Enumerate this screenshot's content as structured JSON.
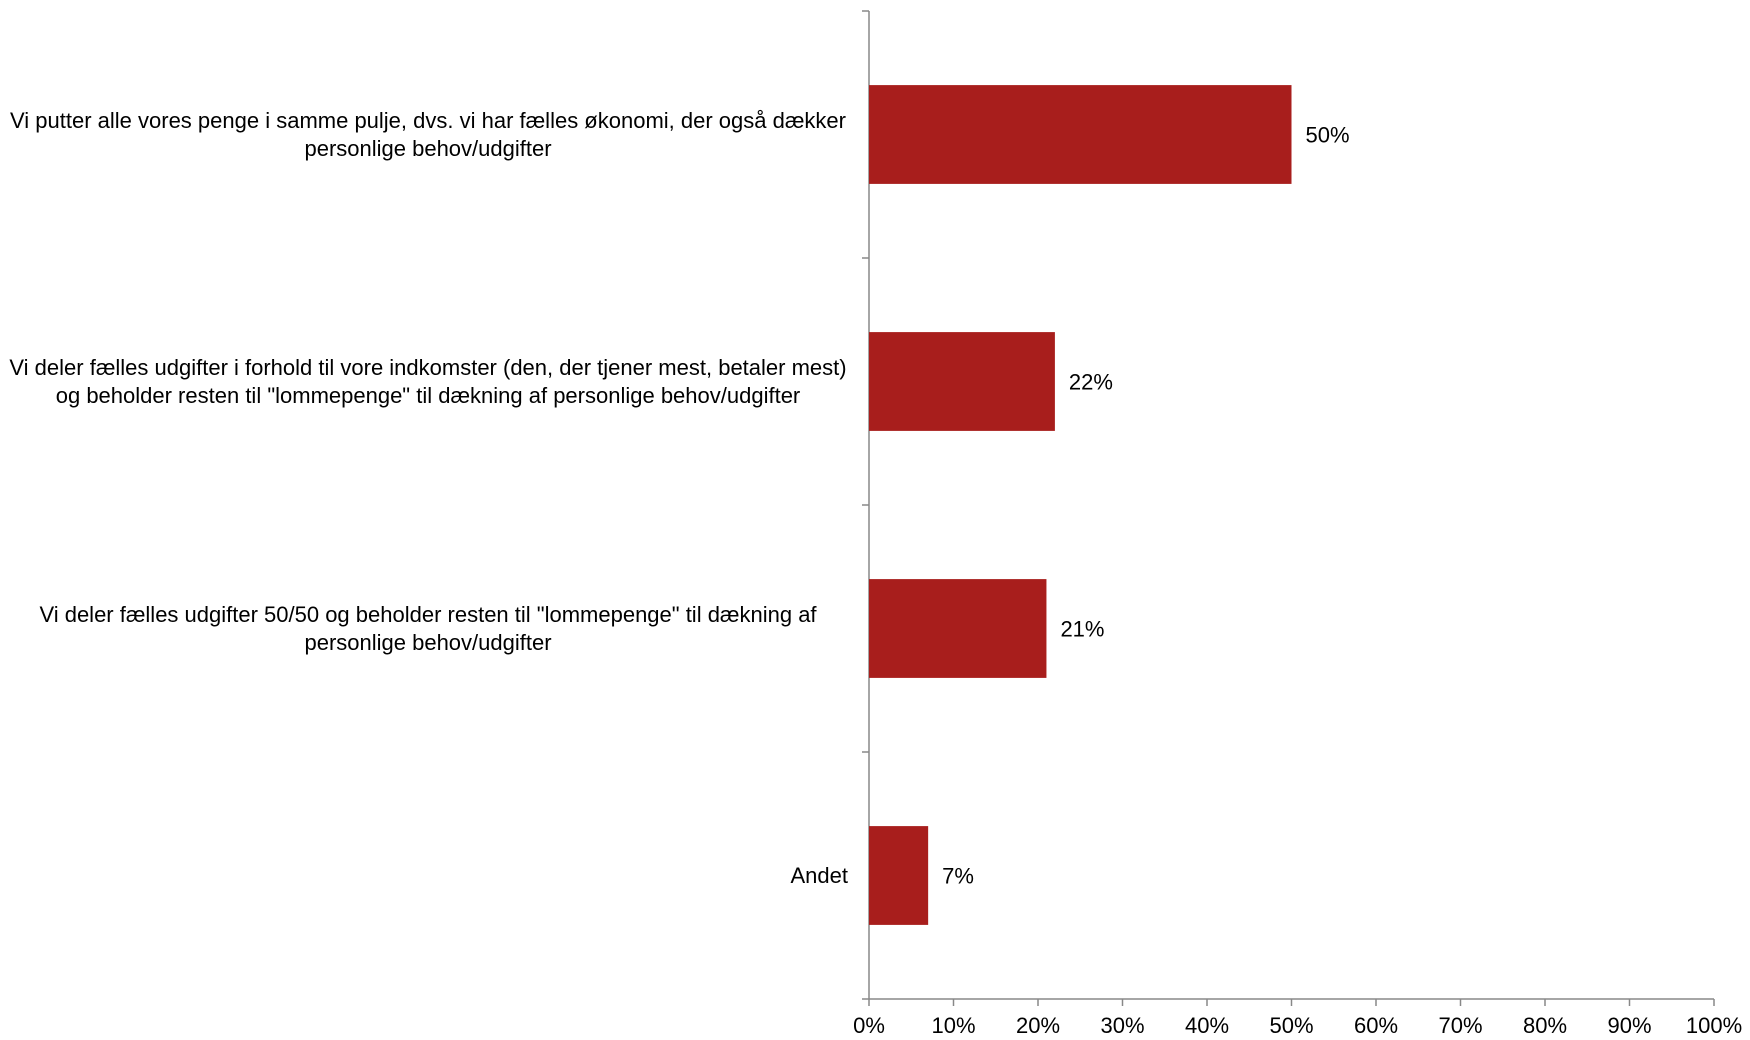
{
  "chart_data": {
    "type": "bar",
    "orientation": "horizontal",
    "categories": [
      "Vi putter alle vores penge i samme pulje, dvs. vi har fælles økonomi, der også dækker personlige behov/udgifter",
      "Vi deler fælles udgifter i forhold til vore indkomster (den, der tjener mest, betaler mest) og beholder resten til \"lommepenge\" til dækning af personlige behov/udgifter",
      "Vi deler fælles udgifter 50/50 og beholder resten til \"lommepenge\" til dækning af personlige behov/udgifter",
      "Andet"
    ],
    "values": [
      50,
      22,
      21,
      7
    ],
    "value_labels": [
      "50%",
      "22%",
      "21%",
      "7%"
    ],
    "color": "#a81e1c",
    "xlim": [
      0,
      100
    ],
    "xticks": [
      {
        "value": 0,
        "label": "0%"
      },
      {
        "value": 10,
        "label": "10%"
      },
      {
        "value": 20,
        "label": "20%"
      },
      {
        "value": 30,
        "label": "30%"
      },
      {
        "value": 40,
        "label": "40%"
      },
      {
        "value": 50,
        "label": "50%"
      },
      {
        "value": 60,
        "label": "60%"
      },
      {
        "value": 70,
        "label": "70%"
      },
      {
        "value": 80,
        "label": "80%"
      },
      {
        "value": 90,
        "label": "90%"
      },
      {
        "value": 100,
        "label": "100%"
      }
    ],
    "grid": false
  }
}
